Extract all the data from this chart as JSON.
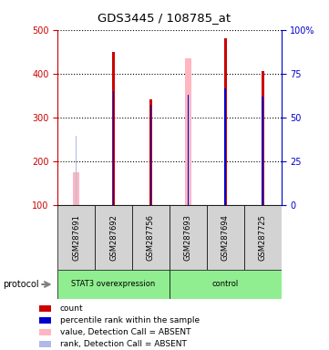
{
  "title": "GDS3445 / 108785_at",
  "samples": [
    "GSM287691",
    "GSM287692",
    "GSM287756",
    "GSM287693",
    "GSM287694",
    "GSM287725"
  ],
  "count_values": [
    null,
    450,
    340,
    null,
    480,
    405
  ],
  "count_color": "#cc0000",
  "rank_values": [
    null,
    360,
    328,
    352,
    365,
    348
  ],
  "rank_color": "#0000cc",
  "absent_value_values": [
    175,
    null,
    null,
    435,
    null,
    null
  ],
  "absent_value_color": "#ffb6c1",
  "absent_rank_values": [
    258,
    null,
    null,
    null,
    null,
    null
  ],
  "absent_rank_color": "#b0b8e8",
  "ylim_left": [
    100,
    500
  ],
  "ylim_right": [
    0,
    100
  ],
  "yticks_left": [
    100,
    200,
    300,
    400,
    500
  ],
  "yticks_right": [
    0,
    25,
    50,
    75,
    100
  ],
  "left_tick_labels": [
    "100",
    "200",
    "300",
    "400",
    "500"
  ],
  "right_tick_labels": [
    "0",
    "25",
    "50",
    "75",
    "100%"
  ],
  "legend_items": [
    {
      "label": "count",
      "color": "#cc0000"
    },
    {
      "label": "percentile rank within the sample",
      "color": "#0000cc"
    },
    {
      "label": "value, Detection Call = ABSENT",
      "color": "#ffb6c1"
    },
    {
      "label": "rank, Detection Call = ABSENT",
      "color": "#b0b8e8"
    }
  ],
  "left_axis_color": "#cc0000",
  "right_axis_color": "#0000cc",
  "stat3_label": "STAT3 overexpression",
  "control_label": "control",
  "protocol_label": "protocol",
  "group_green": "#90EE90",
  "sample_gray": "#d3d3d3"
}
